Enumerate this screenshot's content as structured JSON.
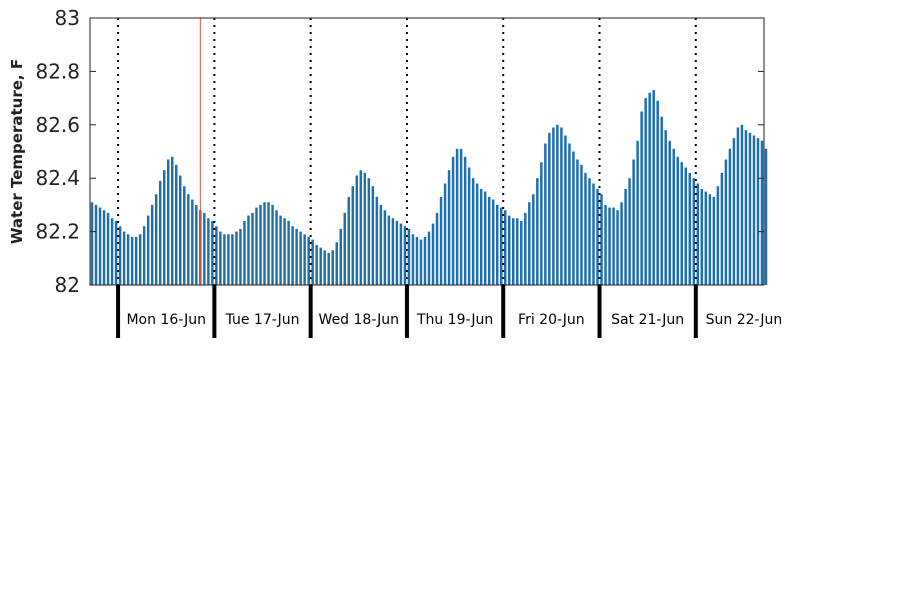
{
  "chart_data": {
    "type": "bar",
    "title": "",
    "xlabel": "",
    "ylabel": "Water Temperature, F",
    "ylim": [
      82,
      83
    ],
    "yticks": [
      82,
      82.2,
      82.4,
      82.6,
      82.8,
      83
    ],
    "ytick_labels": [
      "82",
      "82.2",
      "82.4",
      "82.6",
      "82.8",
      "83"
    ],
    "sample_interval_hours": 1,
    "day_labels": [
      "Mon 16-Jun",
      "Tue 17-Jun",
      "Wed 18-Jun",
      "Thu 19-Jun",
      "Fri 20-Jun",
      "Sat 21-Jun",
      "Sun 22-Jun"
    ],
    "start_hour_offset": -7,
    "hours_shown": 168,
    "current_time_hour_offset": 20.5,
    "grid": false,
    "day_separators": "dotted",
    "colors": {
      "bars": "#1f6fad",
      "current_time_marker": "#d9534f",
      "axis": "#222222"
    },
    "series": [
      {
        "values": [
          82.31,
          82.3,
          82.29,
          82.28,
          82.27,
          82.25,
          82.24,
          82.22,
          82.2,
          82.19,
          82.18,
          82.18,
          82.19,
          82.22,
          82.26,
          82.3,
          82.34,
          82.39,
          82.43,
          82.47,
          82.48,
          82.45,
          82.41,
          82.37,
          82.34,
          82.32,
          82.3,
          82.28,
          82.27,
          82.25,
          82.24,
          82.22,
          82.2,
          82.19,
          82.19,
          82.19,
          82.2,
          82.21,
          82.24,
          82.26,
          82.27,
          82.29,
          82.3,
          82.31,
          82.31,
          82.3,
          82.28,
          82.26,
          82.25,
          82.24,
          82.22,
          82.21,
          82.2,
          82.19,
          82.18,
          82.17,
          82.15,
          82.14,
          82.13,
          82.12,
          82.13,
          82.16,
          82.21,
          82.27,
          82.33,
          82.37,
          82.41,
          82.43,
          82.42,
          82.4,
          82.37,
          82.33,
          82.3,
          82.28,
          82.26,
          82.25,
          82.24,
          82.23,
          82.22,
          82.21,
          82.19,
          82.18,
          82.17,
          82.18,
          82.2,
          82.23,
          82.27,
          82.33,
          82.38,
          82.43,
          82.48,
          82.51,
          82.51,
          82.48,
          82.44,
          82.4,
          82.38,
          82.36,
          82.35,
          82.33,
          82.32,
          82.3,
          82.29,
          82.28,
          82.26,
          82.25,
          82.25,
          82.24,
          82.27,
          82.31,
          82.34,
          82.4,
          82.46,
          82.53,
          82.57,
          82.59,
          82.6,
          82.59,
          82.56,
          82.53,
          82.5,
          82.47,
          82.45,
          82.42,
          82.4,
          82.38,
          82.36,
          82.34,
          82.3,
          82.29,
          82.29,
          82.28,
          82.31,
          82.36,
          82.4,
          82.47,
          82.54,
          82.65,
          82.7,
          82.72,
          82.73,
          82.69,
          82.63,
          82.58,
          82.54,
          82.51,
          82.48,
          82.46,
          82.44,
          82.42,
          82.4,
          82.38,
          82.36,
          82.35,
          82.34,
          82.33,
          82.37,
          82.42,
          82.47,
          82.51,
          82.55,
          82.59,
          82.6,
          82.58,
          82.57,
          82.56,
          82.55,
          82.54,
          82.51
        ]
      }
    ]
  }
}
